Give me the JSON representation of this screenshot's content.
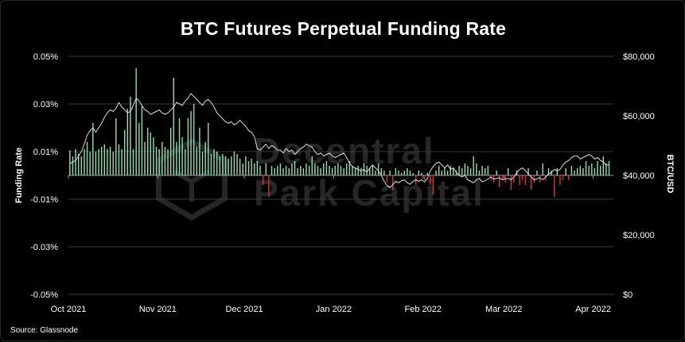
{
  "title": "BTC Futures Perpetual Funding Rate",
  "source": "Source: Glassnode",
  "watermark": {
    "line1": "Decentral",
    "line2": "Park Capital"
  },
  "colors": {
    "background": "#000000",
    "positive_bar": "#8fe0b4",
    "negative_bar": "#e0303a",
    "price_line": "#d8d8d8",
    "grid": "#3a3a3a"
  },
  "chart_data": {
    "type": "bar",
    "title": "BTC Futures Perpetual Funding Rate",
    "ylabel_left": "Funding Rate",
    "ylabel_right": "BTC/USD",
    "xlabel": "",
    "y_left_ticks": [
      "0.05%",
      "0.03%",
      "0.01%",
      "-0.01%",
      "-0.03%",
      "-0.05%"
    ],
    "y_left_range": [
      -0.05,
      0.05
    ],
    "y_right_ticks": [
      "$80,000",
      "$60,000",
      "$40,000",
      "$20,000",
      "$0"
    ],
    "y_right_range": [
      0,
      80000
    ],
    "x_ticks": [
      "Oct 2021",
      "Nov 2021",
      "Dec 2021",
      "Jan 2022",
      "Feb 2022",
      "Mar 2022",
      "Apr 2022"
    ],
    "x_range_days": [
      0,
      189
    ],
    "grid": true,
    "funding_rate_series": {
      "name": "Funding Rate",
      "values": [
        0.0105,
        0.008,
        0.011,
        0.009,
        0.008,
        0.011,
        0.014,
        0.01,
        0.022,
        0.01,
        0.011,
        0.012,
        0.013,
        0.011,
        0.012,
        0.01,
        0.024,
        0.013,
        0.011,
        0.019,
        0.028,
        0.033,
        0.011,
        0.045,
        0.022,
        0.029,
        0.014,
        0.02,
        0.018,
        0.016,
        0.012,
        0.011,
        0.014,
        0.012,
        0.011,
        0.02,
        0.041,
        0.014,
        0.024,
        0.016,
        0.011,
        0.024,
        0.027,
        0.03,
        0.012,
        0.02,
        0.01,
        0.014,
        0.022,
        0.009,
        0.011,
        0.01,
        0.008,
        0.009,
        0.008,
        0.007,
        0.008,
        0.01,
        0.009,
        0.007,
        0.005,
        0.008,
        0.006,
        0.007,
        0.005,
        0.006,
        0.004,
        -0.004,
        0.005,
        -0.009,
        0.004,
        0.003,
        0.004,
        0.005,
        0.003,
        0.004,
        0.003,
        0.005,
        0.006,
        0.003,
        0.004,
        0.003,
        0.005,
        0.004,
        0.008,
        0.005,
        0.004,
        0.003,
        0.005,
        0.006,
        0.004,
        0.003,
        0.004,
        0.005,
        0.004,
        0.003,
        0.005,
        0.006,
        0.004,
        0.003,
        0.004,
        0.003,
        0.005,
        0.004,
        0.003,
        0.004,
        0.002,
        0.005,
        0.003,
        0.002,
        -0.003,
        0.002,
        -0.006,
        0.003,
        0.002,
        0.001,
        0.002,
        0.003,
        0.002,
        0.001,
        -0.004,
        0.002,
        0.001,
        -0.002,
        0.001,
        -0.004,
        -0.008,
        0.002,
        0.004,
        0.002,
        0.003,
        0.002,
        0.004,
        0.003,
        0.002,
        0.004,
        0.003,
        0.005,
        0.004,
        0.003,
        0.008,
        0.005,
        0.002,
        0.004,
        0.003,
        0.004,
        -0.002,
        -0.003,
        0.002,
        -0.005,
        -0.002,
        -0.003,
        0.003,
        -0.006,
        -0.003,
        0.002,
        -0.004,
        -0.002,
        -0.004,
        0.003,
        -0.006,
        -0.003,
        0.002,
        -0.003,
        0.005,
        -0.002,
        0.003,
        0.002,
        -0.009,
        0.003,
        -0.004,
        -0.002,
        0.003,
        -0.002,
        0.004,
        0.002,
        0.003,
        0.004,
        0.003,
        0.006,
        0.004,
        0.005,
        0.003,
        0.006,
        0.004,
        0.008,
        0.005,
        0.006
      ]
    },
    "price_series": {
      "name": "BTC/USD",
      "values": [
        44000,
        44500,
        45000,
        46500,
        48000,
        50500,
        53500,
        55000,
        56000,
        54500,
        56000,
        57500,
        59500,
        61000,
        62000,
        61500,
        62500,
        64500,
        63000,
        62000,
        61000,
        61500,
        63500,
        66000,
        65000,
        63500,
        62000,
        61500,
        60500,
        61000,
        61500,
        62000,
        61000,
        60500,
        61000,
        62000,
        63000,
        64500,
        64000,
        63500,
        65000,
        66000,
        67500,
        66500,
        65500,
        64500,
        63500,
        65000,
        65500,
        64500,
        63000,
        61000,
        60000,
        59000,
        58000,
        57500,
        58000,
        57000,
        57500,
        58500,
        57500,
        56500,
        55000,
        54500,
        53000,
        49000,
        48500,
        49500,
        50500,
        49000,
        50000,
        49500,
        48500,
        48500,
        47500,
        49000,
        48000,
        48500,
        47000,
        48000,
        49000,
        49500,
        50500,
        50000,
        49500,
        48000,
        47000,
        47500,
        46500,
        47000,
        47500,
        46500,
        46000,
        46500,
        47000,
        47500,
        46000,
        44000,
        43000,
        42500,
        42000,
        41500,
        42000,
        41000,
        42500,
        43500,
        42500,
        41500,
        40000,
        38000,
        36500,
        36000,
        36800,
        38000,
        37500,
        38200,
        38500,
        37500,
        37000,
        38000,
        38500,
        38000,
        38500,
        37800,
        39000,
        41500,
        43000,
        44000,
        44500,
        43500,
        42500,
        43500,
        42000,
        42500,
        41000,
        40000,
        39500,
        40000,
        38500,
        38000,
        37500,
        38500,
        39000,
        37800,
        38200,
        38800,
        39500,
        38700,
        39000,
        39200,
        38500,
        38800,
        39000,
        38500,
        39500,
        41000,
        42000,
        42500,
        41500,
        40500,
        39500,
        38500,
        38800,
        39200,
        38500,
        39500,
        40500,
        41000,
        42000,
        41500,
        42000,
        43500,
        44500,
        45000,
        46000,
        46500,
        46500,
        45500,
        46000,
        46500,
        47000,
        46500,
        45500,
        46000,
        45000,
        44500,
        43500,
        43500
      ]
    }
  }
}
